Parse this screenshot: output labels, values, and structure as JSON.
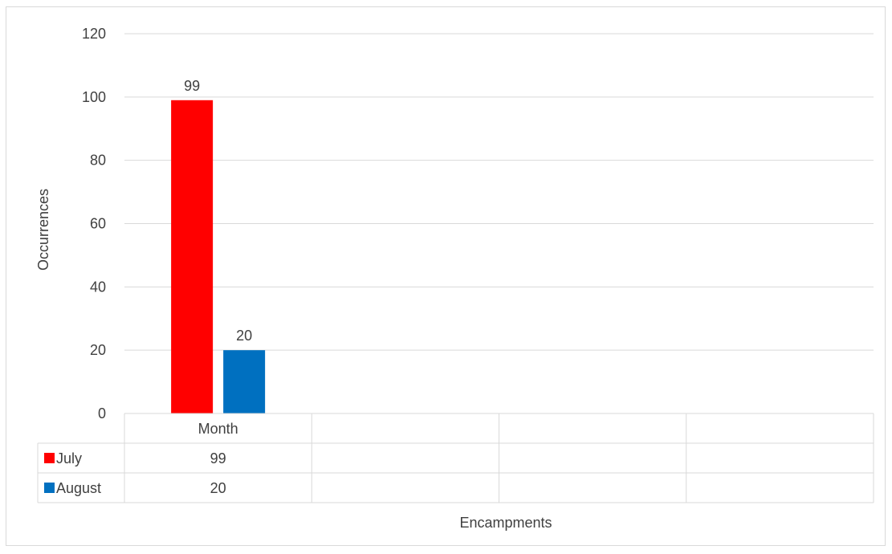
{
  "chart_data": {
    "type": "bar",
    "ylabel": "Occurrences",
    "xlabel": "Encampments",
    "ylim": [
      0,
      120
    ],
    "yticks": [
      0,
      20,
      40,
      60,
      80,
      100,
      120
    ],
    "categories": [
      "Month",
      "",
      "",
      ""
    ],
    "series": [
      {
        "name": "July",
        "color": "#ff0000",
        "values": [
          99,
          null,
          null,
          null
        ]
      },
      {
        "name": "August",
        "color": "#0070c0",
        "values": [
          20,
          null,
          null,
          null
        ]
      }
    ],
    "grid": true,
    "legend": "data-table"
  }
}
